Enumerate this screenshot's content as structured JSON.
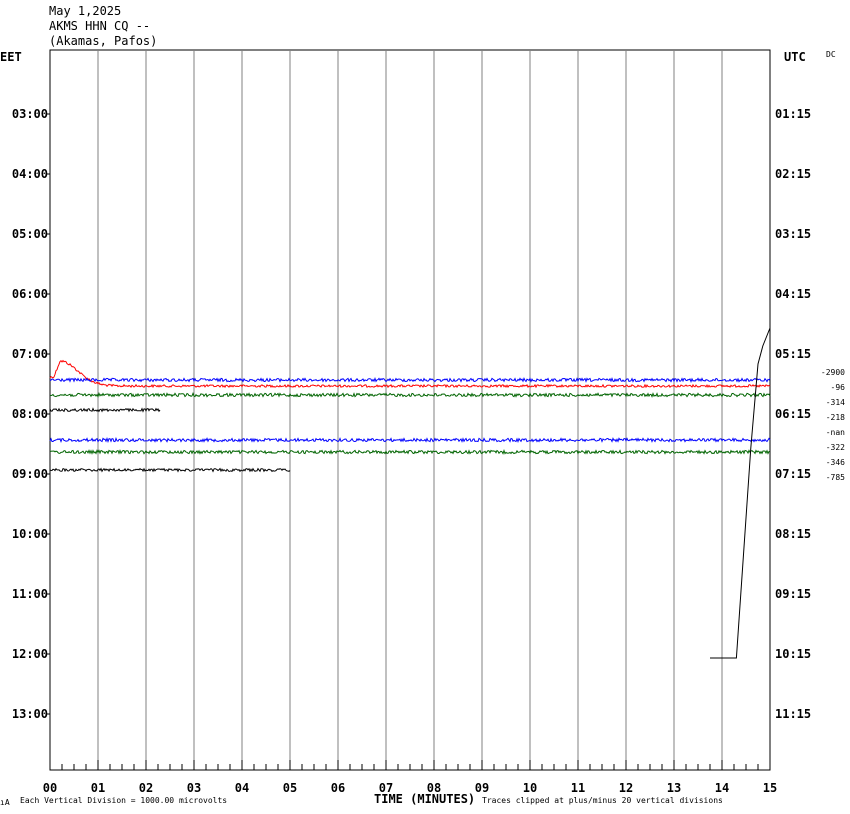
{
  "header": {
    "date": "May 1,2025",
    "station": "AKMS HHN CQ --",
    "location": "(Akamas, Pafos)"
  },
  "left_zone": "EET",
  "right_zone": "UTC",
  "dc_label": "DC",
  "footer": {
    "scale_note": "Each Vertical Division = 1000.00 microvolts",
    "x_title": "TIME (MINUTES)",
    "clip_note": "Traces clipped at plus/minus 20 vertical divisions",
    "corner_mark": "ıA"
  },
  "chart_data": {
    "type": "line",
    "title": "",
    "xlabel": "TIME (MINUTES)",
    "xlim": [
      0,
      15
    ],
    "x_ticks": [
      "00",
      "01",
      "02",
      "03",
      "04",
      "05",
      "06",
      "07",
      "08",
      "09",
      "10",
      "11",
      "12",
      "13",
      "14",
      "15"
    ],
    "left_ticks": [
      "03:00",
      "04:00",
      "05:00",
      "06:00",
      "07:00",
      "08:00",
      "09:00",
      "10:00",
      "11:00",
      "12:00",
      "13:00"
    ],
    "right_ticks": [
      "01:15",
      "02:15",
      "03:15",
      "04:15",
      "05:15",
      "06:15",
      "07:15",
      "08:15",
      "09:15",
      "10:15",
      "11:15"
    ],
    "row_offsets": [
      "-2900",
      "-96",
      "-314",
      "-218",
      "-nan",
      "-322",
      "-346",
      "-785"
    ],
    "grid": true,
    "traces": [
      {
        "color": "#ff0000",
        "row_hour": 7.6,
        "start_min": 0,
        "end_min": 15,
        "noise": 1.2,
        "onset_bump": true
      },
      {
        "color": "#0000ff",
        "row_hour": 7.5,
        "start_min": 0,
        "end_min": 15,
        "noise": 1.6
      },
      {
        "color": "#006400",
        "row_hour": 7.75,
        "start_min": 0,
        "end_min": 15,
        "noise": 1.6
      },
      {
        "color": "#000000",
        "row_hour": 8.0,
        "start_min": 0,
        "end_min": 2.3,
        "noise": 1.4
      },
      {
        "color": "#0000ff",
        "row_hour": 8.5,
        "start_min": 0,
        "end_min": 15,
        "noise": 1.6
      },
      {
        "color": "#006400",
        "row_hour": 8.7,
        "start_min": 0,
        "end_min": 15,
        "noise": 1.6
      },
      {
        "color": "#000000",
        "row_hour": 9.0,
        "start_min": 0,
        "end_min": 5.0,
        "noise": 1.4
      }
    ],
    "clipped_trace": {
      "color": "#000000",
      "points": [
        [
          13.75,
          12.0
        ],
        [
          14.3,
          12.0
        ],
        [
          14.6,
          8.5
        ],
        [
          14.75,
          7.1
        ],
        [
          14.85,
          6.8
        ],
        [
          15.0,
          6.5
        ]
      ]
    }
  }
}
